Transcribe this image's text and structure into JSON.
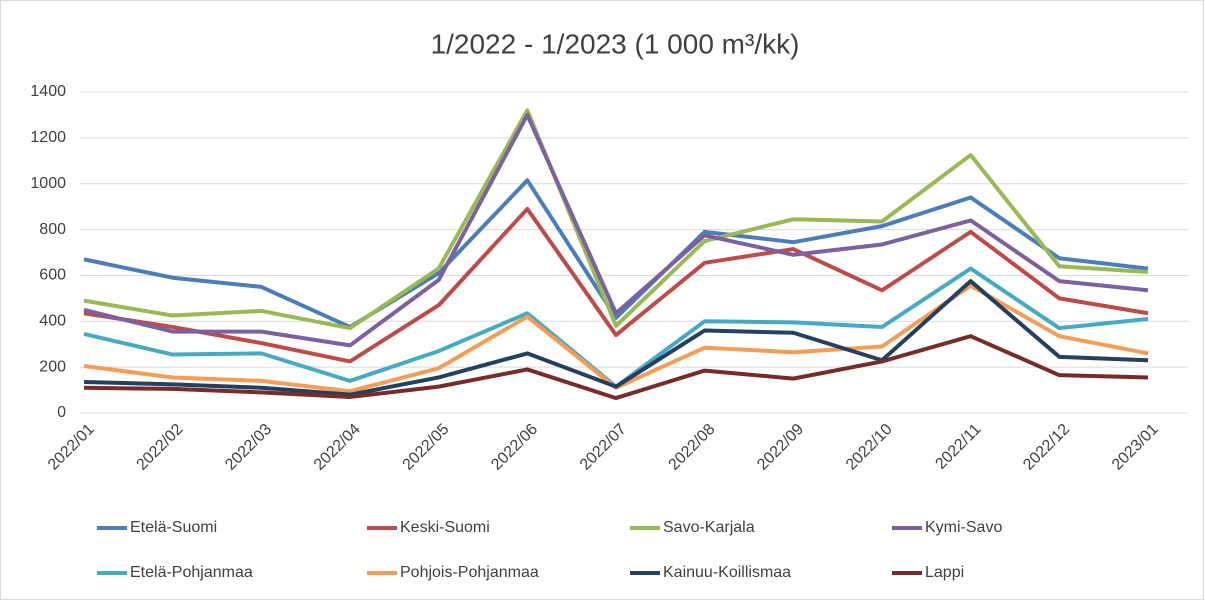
{
  "chart_data": {
    "type": "line",
    "title": "1/2022 - 1/2023 (1 000 m³/kk)",
    "categories": [
      "2022/01",
      "2022/02",
      "2022/03",
      "2022/04",
      "2022/05",
      "2022/06",
      "2022/07",
      "2022/08",
      "2022/09",
      "2022/10",
      "2022/11",
      "2022/12",
      "2023/01"
    ],
    "ylim": [
      0,
      1400
    ],
    "yticks": [
      0,
      200,
      400,
      600,
      800,
      1000,
      1200,
      1400
    ],
    "grid": true,
    "legend": "bottom",
    "series": [
      {
        "name": "Etelä-Suomi",
        "color": "#4a7ebb",
        "values": [
          670,
          590,
          550,
          375,
          610,
          1015,
          415,
          790,
          745,
          815,
          940,
          675,
          630
        ]
      },
      {
        "name": "Keski-Suomi",
        "color": "#be4b48",
        "values": [
          435,
          375,
          305,
          225,
          470,
          890,
          340,
          655,
          715,
          535,
          790,
          500,
          435
        ]
      },
      {
        "name": "Savo-Karjala",
        "color": "#98b954",
        "values": [
          490,
          425,
          445,
          370,
          630,
          1320,
          380,
          750,
          845,
          835,
          1125,
          640,
          615
        ]
      },
      {
        "name": "Kymi-Savo",
        "color": "#7d60a0",
        "values": [
          450,
          355,
          355,
          295,
          580,
          1300,
          435,
          775,
          690,
          735,
          840,
          575,
          535
        ]
      },
      {
        "name": "Etelä-Pohjanmaa",
        "color": "#46aac5",
        "values": [
          345,
          255,
          260,
          140,
          270,
          435,
          115,
          400,
          395,
          375,
          630,
          370,
          410
        ]
      },
      {
        "name": "Pohjois-Pohjanmaa",
        "color": "#f59d56",
        "values": [
          205,
          155,
          140,
          95,
          195,
          420,
          110,
          285,
          265,
          290,
          555,
          335,
          260
        ]
      },
      {
        "name": "Kainuu-Koillismaa",
        "color": "#253f60",
        "values": [
          135,
          125,
          110,
          80,
          155,
          260,
          115,
          360,
          350,
          230,
          575,
          245,
          230
        ]
      },
      {
        "name": "Lappi",
        "color": "#772c2a",
        "values": [
          110,
          105,
          90,
          70,
          115,
          190,
          65,
          185,
          150,
          225,
          335,
          165,
          155
        ]
      }
    ]
  }
}
